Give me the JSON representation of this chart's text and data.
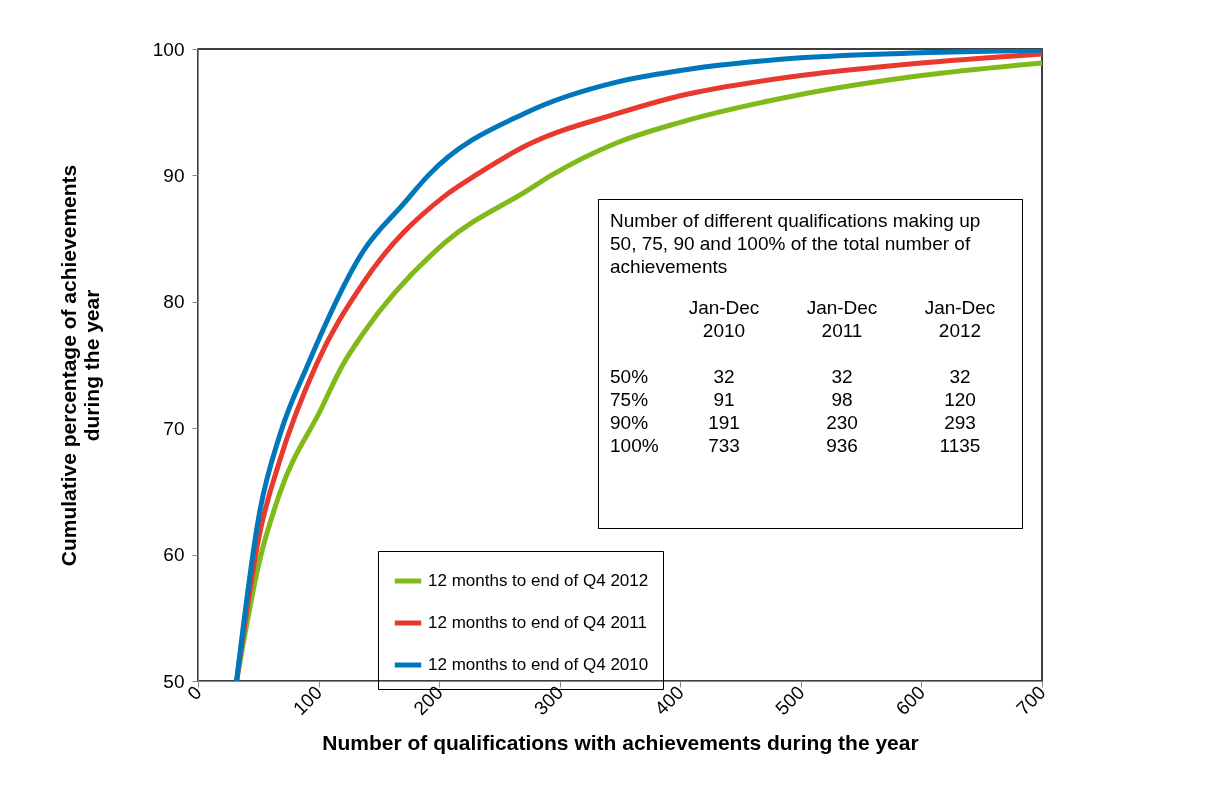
{
  "chart_data": {
    "type": "line",
    "xlabel": "Number of qualifications with achievements during the year",
    "ylabel": "Cumulative percentage of achievements\nduring the year",
    "xlim": [
      0,
      700
    ],
    "ylim": [
      50,
      100
    ],
    "xticks": [
      0,
      100,
      200,
      300,
      400,
      500,
      600,
      700
    ],
    "yticks": [
      50,
      60,
      70,
      80,
      90,
      100
    ],
    "grid": false,
    "legend": "bottom",
    "marker": "none",
    "line_style": "solid",
    "series": [
      {
        "name": "12 months to end of Q4 2012",
        "color": "#7fba1a",
        "x": [
          32,
          51,
          68,
          102,
          120,
          137,
          205,
          273,
          293,
          348,
          400,
          500,
          600,
          700
        ],
        "values": [
          50,
          59.5,
          64.9,
          71.5,
          75,
          77.5,
          84.7,
          88.8,
          90,
          92.6,
          94.2,
          96.4,
          97.9,
          98.9
        ]
      },
      {
        "name": "12 months to end of Q4 2011",
        "color": "#e8392f",
        "x": [
          32,
          51,
          68,
          98,
          137,
          205,
          230,
          273,
          348,
          400,
          500,
          600,
          700
        ],
        "values": [
          50,
          61.6,
          67.5,
          75,
          81.5,
          88.4,
          90,
          92.4,
          94.9,
          96.3,
          97.9,
          98.9,
          99.6
        ]
      },
      {
        "name": "12 months to end of Q4 2010",
        "color": "#0077bb",
        "x": [
          32,
          51,
          68,
          91,
          137,
          171,
          191,
          273,
          348,
          400,
          500,
          600,
          700
        ],
        "values": [
          50,
          63.3,
          69.5,
          75,
          84,
          87.8,
          90,
          95,
          97.4,
          98.3,
          99.3,
          99.7,
          99.9
        ]
      }
    ],
    "annotations": [
      "Number of different qualifications making up  50, 75, 90 and 100% of the total number of achievements",
      "\tJan-Dec 2010\tJan-Dec 2011\tJan-Dec 2012",
      "50%\t32\t32\t32",
      "75%\t91\t98\t120",
      "90%\t191\t230\t293",
      "100%\t733\t936\t1135"
    ]
  }
}
